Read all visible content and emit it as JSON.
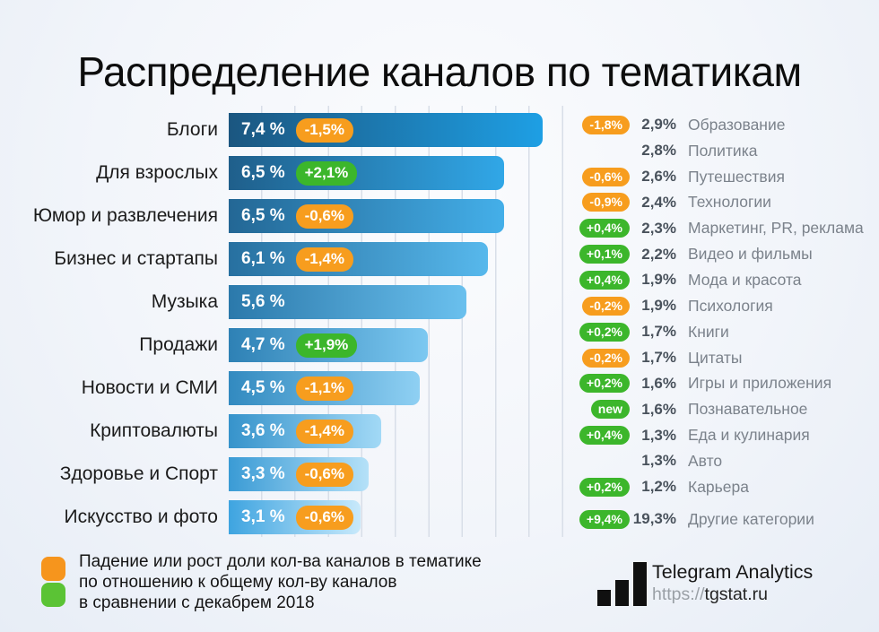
{
  "chart_data": {
    "type": "bar",
    "orientation": "horizontal",
    "title": "Распределение каналов по тематикам",
    "unit": "%",
    "xlim": [
      0,
      7.9
    ],
    "grid": true,
    "bars": [
      {
        "label": "Блоги",
        "value": 7.4,
        "value_label": "7,4 %",
        "change": "-1,5%",
        "dir": "down"
      },
      {
        "label": "Для взрослых",
        "value": 6.5,
        "value_label": "6,5 %",
        "change": "+2,1%",
        "dir": "up"
      },
      {
        "label": "Юмор и развлечения",
        "value": 6.5,
        "value_label": "6,5 %",
        "change": "-0,6%",
        "dir": "down"
      },
      {
        "label": "Бизнес и стартапы",
        "value": 6.1,
        "value_label": "6,1 %",
        "change": "-1,4%",
        "dir": "down"
      },
      {
        "label": "Музыка",
        "value": 5.6,
        "value_label": "5,6 %",
        "change": null,
        "dir": null
      },
      {
        "label": "Продажи",
        "value": 4.7,
        "value_label": "4,7 %",
        "change": "+1,9%",
        "dir": "up"
      },
      {
        "label": "Новости и СМИ",
        "value": 4.5,
        "value_label": "4,5 %",
        "change": "-1,1%",
        "dir": "down"
      },
      {
        "label": "Криптовалюты",
        "value": 3.6,
        "value_label": "3,6 %",
        "change": "-1,4%",
        "dir": "down"
      },
      {
        "label": "Здоровье и Спорт",
        "value": 3.3,
        "value_label": "3,3 %",
        "change": "-0,6%",
        "dir": "down"
      },
      {
        "label": "Искусство и фото",
        "value": 3.1,
        "value_label": "3,1 %",
        "change": "-0,6%",
        "dir": "down"
      }
    ],
    "side_list": [
      {
        "change": "-1,8%",
        "dir": "down",
        "value": "2,9%",
        "label": "Образование"
      },
      {
        "change": null,
        "dir": null,
        "value": "2,8%",
        "label": "Политика"
      },
      {
        "change": "-0,6%",
        "dir": "down",
        "value": "2,6%",
        "label": "Путешествия"
      },
      {
        "change": "-0,9%",
        "dir": "down",
        "value": "2,4%",
        "label": "Технологии"
      },
      {
        "change": "+0,4%",
        "dir": "up",
        "value": "2,3%",
        "label": "Маркетинг, PR, реклама"
      },
      {
        "change": "+0,1%",
        "dir": "up",
        "value": "2,2%",
        "label": "Видео и фильмы"
      },
      {
        "change": "+0,4%",
        "dir": "up",
        "value": "1,9%",
        "label": "Мода и красота"
      },
      {
        "change": "-0,2%",
        "dir": "down",
        "value": "1,9%",
        "label": "Психология"
      },
      {
        "change": "+0,2%",
        "dir": "up",
        "value": "1,7%",
        "label": "Книги"
      },
      {
        "change": "-0,2%",
        "dir": "down",
        "value": "1,7%",
        "label": "Цитаты"
      },
      {
        "change": "+0,2%",
        "dir": "up",
        "value": "1,6%",
        "label": "Игры и приложения"
      },
      {
        "change": "new",
        "dir": "up",
        "value": "1,6%",
        "label": "Познавательное"
      },
      {
        "change": "+0,4%",
        "dir": "up",
        "value": "1,3%",
        "label": "Еда и кулинария"
      },
      {
        "change": null,
        "dir": null,
        "value": "1,3%",
        "label": "Авто"
      },
      {
        "change": "+0,2%",
        "dir": "up",
        "value": "1,2%",
        "label": "Карьера"
      },
      {
        "change": "+9,4%",
        "dir": "up",
        "value": "19,3%",
        "label": "Другие категории",
        "last": true
      }
    ],
    "bar_gradient": {
      "top_left": "#1B5680",
      "top_right": "#1E9FE4",
      "bottom_left": "#3EA4E0",
      "bottom_right": "#C8E9FB"
    }
  },
  "colors": {
    "badge_orange": "#F79D1E",
    "badge_green": "#3CB62B",
    "legend_orange": "#F6951D",
    "legend_green": "#5BC335",
    "grid": "#D8DEE8"
  },
  "legend": {
    "lines": [
      "Падение или рост доли кол-ва каналов в тематике",
      "по отношению к общему кол-ву каналов",
      "в сравнении с декабрем 2018"
    ]
  },
  "footer": {
    "brand": "Telegram Analytics",
    "url_scheme": "https://",
    "url_host": "tgstat.ru"
  }
}
